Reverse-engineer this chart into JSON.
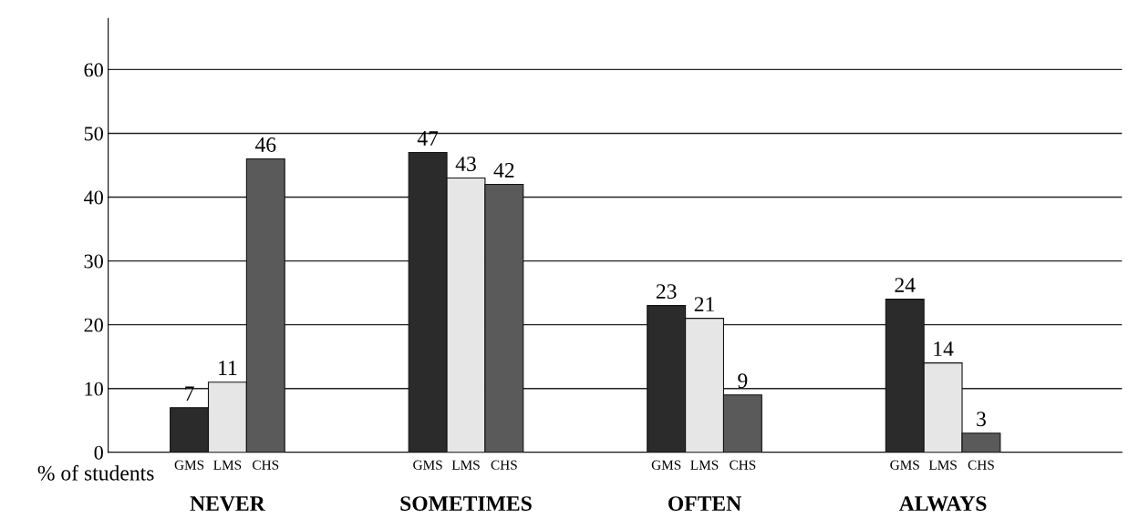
{
  "chart_data": {
    "type": "bar",
    "categories": [
      "NEVER",
      "SOMETIMES",
      "OFTEN",
      "ALWAYS"
    ],
    "series": [
      {
        "name": "GMS",
        "color": "#2b2b2b",
        "values": [
          7,
          47,
          23,
          24
        ]
      },
      {
        "name": "LMS",
        "color": "#e6e6e6",
        "values": [
          11,
          43,
          21,
          14
        ]
      },
      {
        "name": "CHS",
        "color": "#5a5a5a",
        "values": [
          46,
          42,
          9,
          3
        ]
      }
    ],
    "ylabel": "% of students",
    "ylim": [
      0,
      68
    ],
    "yticks": [
      0,
      10,
      20,
      30,
      40,
      50,
      60
    ],
    "grid": "y",
    "data_labels": true,
    "legend": false
  }
}
